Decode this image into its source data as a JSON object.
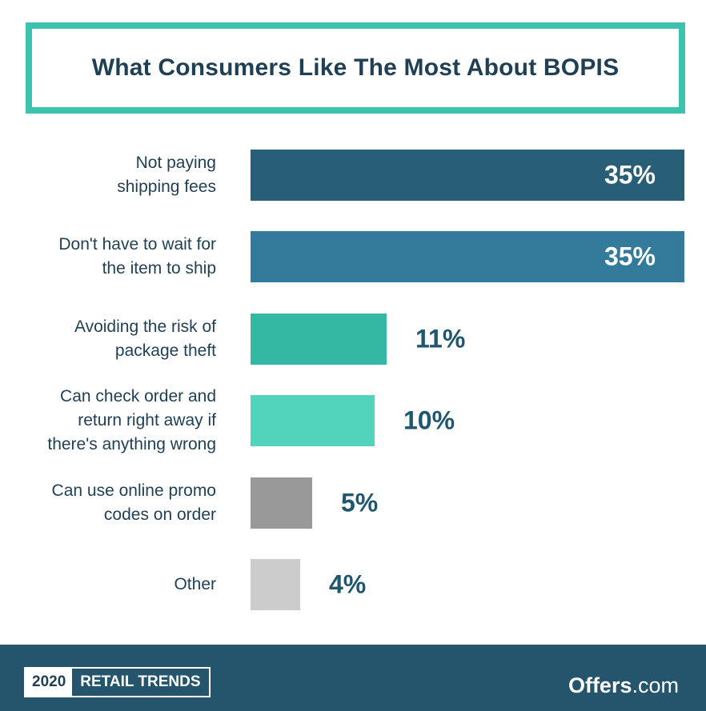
{
  "title": "What Consumers Like The Most About BOPIS",
  "chart_data": {
    "type": "bar",
    "orientation": "horizontal",
    "categories": [
      "Not paying\nshipping fees",
      "Don't have to wait for\nthe item to ship",
      "Avoiding the risk of\npackage theft",
      "Can check order and\nreturn right away if\nthere's anything wrong",
      "Can use online promo\ncodes on order",
      "Other"
    ],
    "values": [
      35,
      35,
      11,
      10,
      5,
      4
    ],
    "value_labels": [
      "35%",
      "35%",
      "11%",
      "10%",
      "5%",
      "4%"
    ],
    "colors": [
      "#285e77",
      "#347b9b",
      "#34b8a4",
      "#52d4bc",
      "#999999",
      "#cccccc"
    ],
    "unit": "%",
    "xlim": [
      0,
      35
    ],
    "grid": false
  },
  "footer": {
    "badge_year": "2020",
    "badge_text": "RETAIL TRENDS",
    "logo_main": "Offers",
    "logo_tld": ".com"
  }
}
